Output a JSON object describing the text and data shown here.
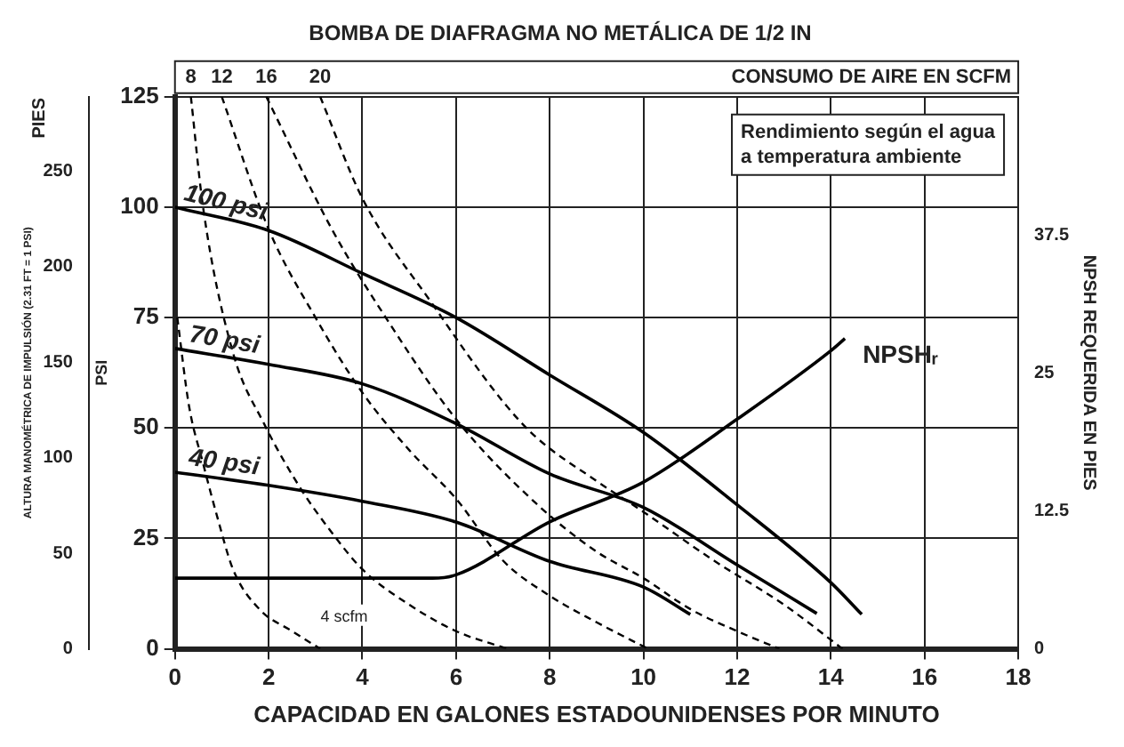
{
  "chart_data": {
    "type": "line",
    "title": "BOMBA DE DIAFRAGMA NO METÁLICA DE 1/2 IN",
    "xlabel": "CAPACIDAD EN GALONES ESTADOUNIDENSES POR MINUTO",
    "ylabel": "PSI",
    "y2label": "ALTURA MANOMÉTRICA DE IMPULSIÓN (2.31 FT = 1 PSI)",
    "y3label": "NPSH REQUERIDA EN PIES",
    "annotations": [
      "CONSUMO DE AIRE EN SCFM",
      "Rendimiento según el agua a temperatura ambiente",
      "PIES"
    ],
    "xlim": [
      0,
      18
    ],
    "xticks": [
      0,
      2,
      4,
      6,
      8,
      10,
      12,
      14,
      16,
      18
    ],
    "ylim": [
      0,
      125
    ],
    "yticks": [
      0,
      25,
      50,
      75,
      100,
      125
    ],
    "y2lim": [
      0,
      288.75
    ],
    "y2ticks": [
      0,
      50,
      100,
      150,
      200,
      250
    ],
    "y3lim": [
      0,
      50
    ],
    "y3ticks": [
      0,
      12.5,
      25,
      37.5
    ],
    "grid": true,
    "legend": false,
    "marker": "none",
    "series": [
      {
        "name": "100 psi",
        "color": "#000000",
        "line_style": "solid",
        "x": [
          0,
          2,
          4,
          6,
          8,
          10,
          12,
          14,
          14.66
        ],
        "values": [
          100,
          94.7,
          85,
          75,
          62,
          49,
          32.6,
          15,
          7.8
        ]
      },
      {
        "name": "70 psi",
        "color": "#000000",
        "line_style": "solid",
        "x": [
          0,
          2,
          4,
          6,
          8,
          10,
          12,
          13.7
        ],
        "values": [
          68,
          64.4,
          60,
          51,
          39.6,
          32,
          19,
          8
        ]
      },
      {
        "name": "40 psi",
        "color": "#000000",
        "line_style": "solid",
        "x": [
          0,
          2,
          4,
          6,
          8,
          10,
          11
        ],
        "values": [
          40,
          37,
          33.4,
          28.7,
          19.8,
          14,
          7.8
        ]
      },
      {
        "name": "NPSHᵣ",
        "color": "#000000",
        "line_style": "solid",
        "axis": "y3",
        "x": [
          0,
          5.5,
          6,
          8,
          10,
          12,
          14,
          14.3
        ],
        "values": [
          6.4,
          6.4,
          6.7,
          11.5,
          15.1,
          20.8,
          27,
          28.1
        ]
      },
      {
        "name": "4 scfm",
        "color": "#000000",
        "line_style": "dashed",
        "x": [
          0.05,
          0.3,
          0.6,
          0.9,
          1.24,
          1.8,
          2.5,
          3.1
        ],
        "values": [
          75,
          55,
          42,
          30,
          18,
          9,
          4,
          0
        ]
      },
      {
        "name": "8",
        "color": "#000000",
        "line_style": "dashed",
        "x": [
          0.34,
          0.6,
          1.24,
          1.9,
          2.7,
          3.3,
          4,
          5,
          6,
          7.1
        ],
        "values": [
          125,
          100,
          67,
          51,
          36,
          27,
          18,
          10,
          4,
          0
        ]
      },
      {
        "name": "12",
        "color": "#000000",
        "line_style": "dashed",
        "x": [
          1,
          2,
          3,
          4,
          5,
          6,
          7,
          8,
          9,
          10.1
        ],
        "values": [
          125,
          95,
          75,
          58,
          45,
          34,
          20,
          12,
          6,
          0
        ]
      },
      {
        "name": "16",
        "color": "#000000",
        "line_style": "dashed",
        "x": [
          1.95,
          3.35,
          4.5,
          6,
          7.7,
          9,
          10,
          11,
          12,
          12.9
        ],
        "values": [
          125,
          95,
          75,
          52,
          33,
          22,
          16,
          9,
          4,
          0
        ]
      },
      {
        "name": "20",
        "color": "#000000",
        "line_style": "dashed",
        "x": [
          3.1,
          4,
          5.5,
          7,
          7.7,
          9,
          10,
          11.5,
          13,
          14.25
        ],
        "values": [
          125,
          102,
          78,
          56,
          48,
          38,
          31,
          20,
          10,
          0
        ]
      }
    ]
  }
}
